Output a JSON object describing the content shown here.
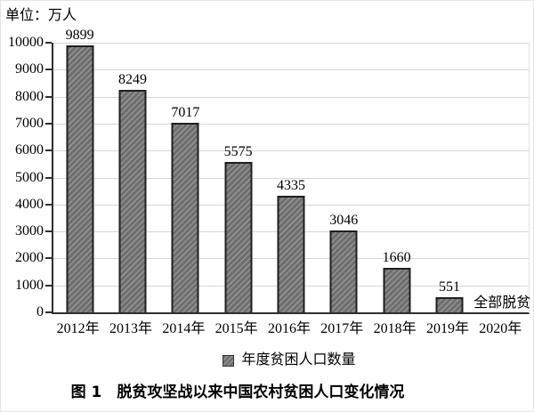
{
  "unit_label": "单位：万人",
  "figure_caption": "图 1　脱贫攻坚战以来中国农村贫困人口变化情况",
  "chart_data": {
    "type": "bar",
    "title": "图 1 脱贫攻坚战以来中国农村贫困人口变化情况",
    "unit": "万人",
    "categories": [
      "2012年",
      "2013年",
      "2014年",
      "2015年",
      "2016年",
      "2017年",
      "2018年",
      "2019年",
      "2020年"
    ],
    "values": [
      9899,
      8249,
      7017,
      5575,
      4335,
      3046,
      1660,
      551,
      null
    ],
    "bar_labels": [
      "9899",
      "8249",
      "7017",
      "5575",
      "4335",
      "3046",
      "1660",
      "551",
      ""
    ],
    "annotation": {
      "category": "2020年",
      "text": "全部脱贫"
    },
    "legend": {
      "label": "年度贫困人口数量",
      "position": "bottom"
    },
    "xlabel": "",
    "ylabel": "",
    "ylim": [
      0,
      10000
    ],
    "ytick_step": 1000,
    "yticks": [
      0,
      1000,
      2000,
      3000,
      4000,
      5000,
      6000,
      7000,
      8000,
      9000,
      10000
    ],
    "grid": true,
    "colors": {
      "bar_fill": "#6e6e6e",
      "bar_stripe": "#939393",
      "bar_border": "#1f1f1f",
      "grid": "#d6d6d6",
      "axis": "#2f2f2f",
      "text": "#000000"
    }
  }
}
